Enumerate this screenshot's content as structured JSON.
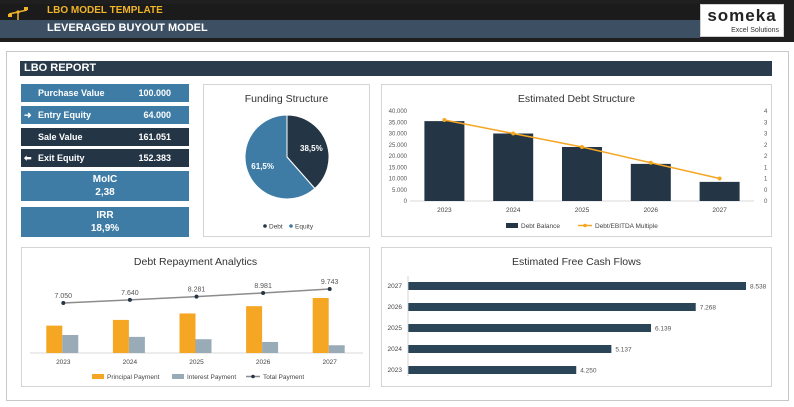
{
  "header": {
    "template_title": "LBO MODEL TEMPLATE",
    "model_title": "LEVERAGED BUYOUT MODEL",
    "logo_main": "someka",
    "logo_sub": "Excel Solutions"
  },
  "report": {
    "title": "LBO REPORT",
    "kpis": [
      {
        "label": "Purchase Value",
        "value": "100.000"
      },
      {
        "label": "Entry Equity",
        "value": "64.000"
      },
      {
        "label": "Sale Value",
        "value": "161.051"
      },
      {
        "label": "Exit Equity",
        "value": "152.383"
      }
    ],
    "moic": {
      "label": "MoIC",
      "value": "2,38"
    },
    "irr": {
      "label": "IRR",
      "value": "18,9%"
    }
  },
  "colors": {
    "navy": "#243646",
    "blue": "#3e7ca6",
    "orange": "#f5a623",
    "gray": "#9aabb8",
    "line_gray": "#8c8c8c",
    "bar_dark": "#2a4558"
  },
  "chart_data": [
    {
      "id": "funding",
      "type": "pie",
      "title": "Funding Structure",
      "labels": [
        "Debt",
        "Equity"
      ],
      "values": [
        38.5,
        61.5
      ],
      "value_labels": [
        "38,5%",
        "61,5%"
      ],
      "colors": [
        "#243646",
        "#3e7ca6"
      ],
      "legend": "bottom"
    },
    {
      "id": "debt_structure",
      "type": "bar",
      "title": "Estimated Debt Structure",
      "categories": [
        "2023",
        "2024",
        "2025",
        "2026",
        "2027"
      ],
      "series": [
        {
          "name": "Debt Balance",
          "type": "bar",
          "axis": "left",
          "values": [
            35500,
            30000,
            24000,
            16500,
            8500
          ]
        },
        {
          "name": "Debt/EBITDA Multiple",
          "type": "line",
          "axis": "right",
          "values": [
            3.6,
            3.0,
            2.4,
            1.7,
            1.0
          ]
        }
      ],
      "ylim_left": [
        0,
        40000
      ],
      "yticks_left": [
        "0",
        "5.000",
        "10.000",
        "15.000",
        "20.000",
        "25.000",
        "30.000",
        "35.000",
        "40.000"
      ],
      "ylim_right": [
        0,
        4
      ],
      "yticks_right": [
        "0",
        "0",
        "1",
        "1",
        "2",
        "2",
        "3",
        "3",
        "4"
      ],
      "legend": "bottom"
    },
    {
      "id": "repayment",
      "type": "bar",
      "title": "Debt Repayment Analytics",
      "categories": [
        "2023",
        "2024",
        "2025",
        "2026",
        "2027"
      ],
      "series": [
        {
          "name": "Principal Payment",
          "type": "bar",
          "values": [
            4250,
            5137,
            6139,
            7268,
            8538
          ]
        },
        {
          "name": "Interest Payment",
          "type": "bar",
          "values": [
            2800,
            2503,
            2142,
            1713,
            1205
          ]
        },
        {
          "name": "Total Payment",
          "type": "line",
          "values": [
            7050,
            7640,
            8281,
            8981,
            9743
          ]
        }
      ],
      "total_labels": [
        "7.050",
        "7.640",
        "8.281",
        "8.981",
        "9.743"
      ],
      "legend": "bottom"
    },
    {
      "id": "fcf",
      "type": "bar",
      "orientation": "horizontal",
      "title": "Estimated Free Cash Flows",
      "categories": [
        "2027",
        "2026",
        "2025",
        "2024",
        "2023"
      ],
      "values": [
        8538,
        7268,
        6139,
        5137,
        4250
      ],
      "value_labels": [
        "8.538",
        "7.268",
        "6.139",
        "5.137",
        "4.250"
      ]
    }
  ]
}
